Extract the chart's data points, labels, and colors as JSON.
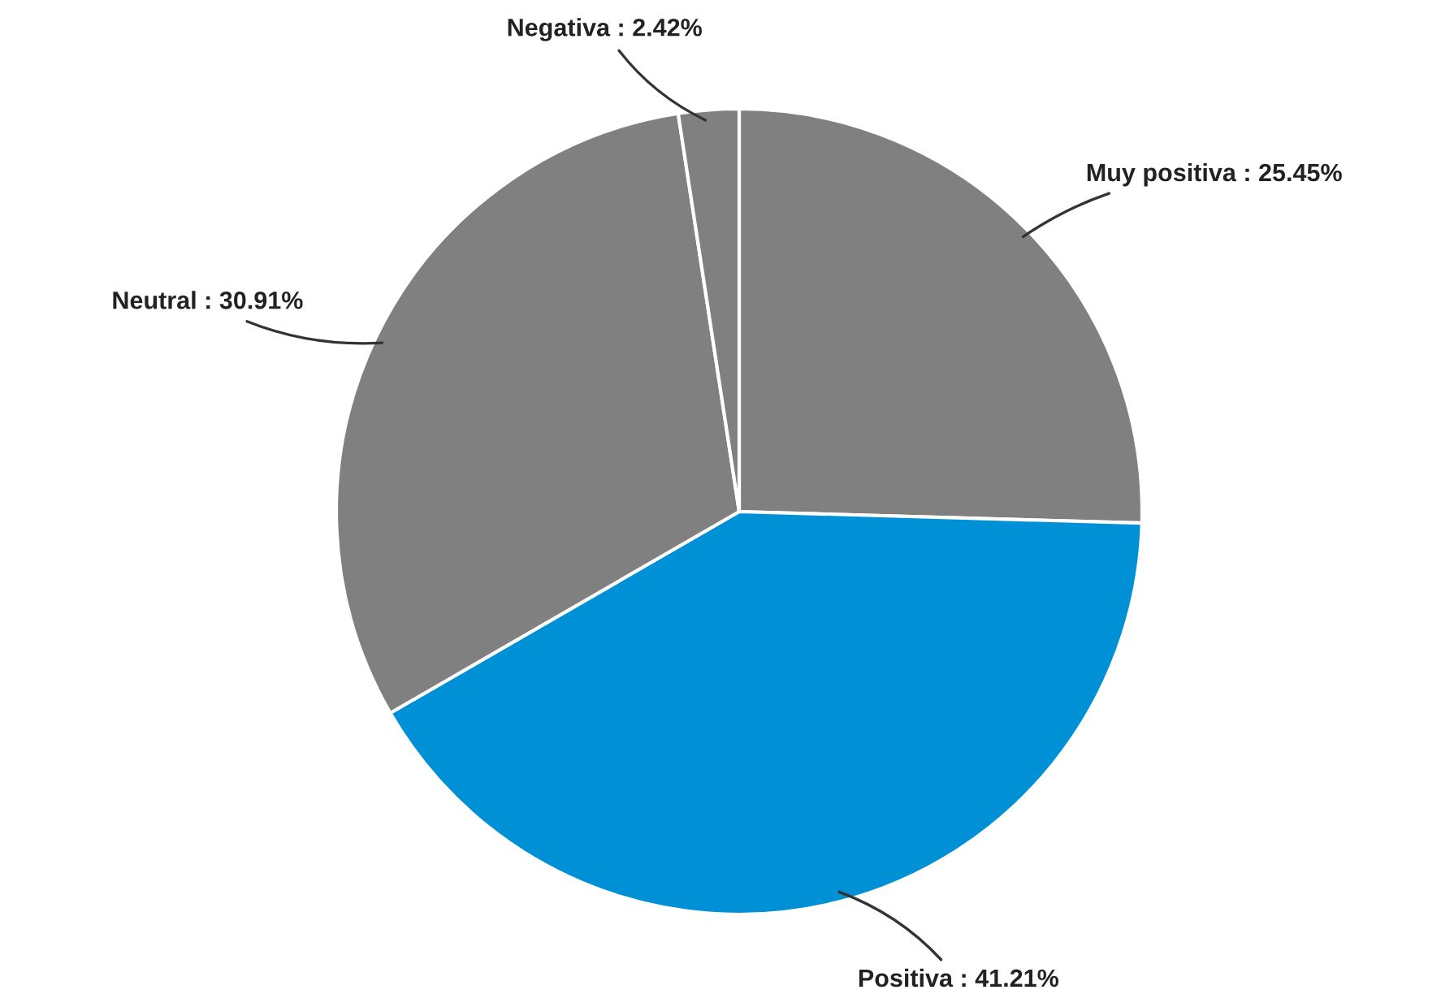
{
  "chart_data": {
    "type": "pie",
    "categories": [
      "Muy positiva",
      "Positiva",
      "Neutral",
      "Negativa"
    ],
    "values": [
      25.45,
      41.21,
      30.91,
      2.42
    ],
    "value_labels": [
      "25.45%",
      "41.21%",
      "30.91%",
      "2.42%"
    ],
    "colors": [
      "#808080",
      "#0090d6",
      "#808080",
      "#808080"
    ],
    "legend": false
  }
}
